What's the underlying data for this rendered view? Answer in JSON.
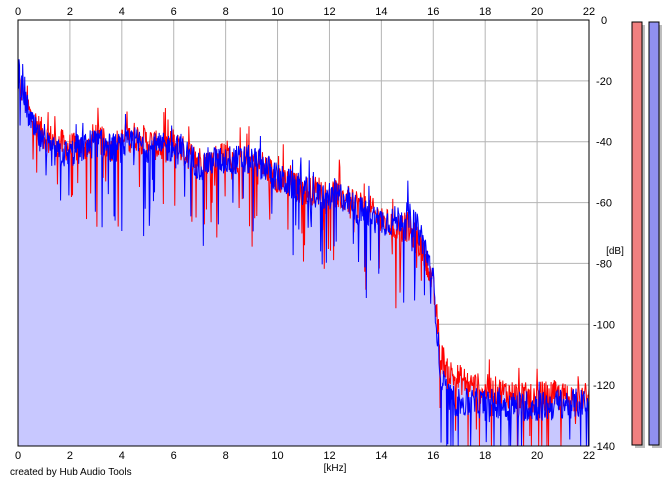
{
  "chart_data": {
    "type": "area",
    "xlabel": "[kHz]",
    "ylabel": "[dB]",
    "xlim": [
      0,
      22
    ],
    "ylim": [
      -140,
      0
    ],
    "x_ticks": [
      "0",
      "2",
      "4",
      "6",
      "8",
      "10",
      "12",
      "14",
      "16",
      "18",
      "20",
      "22"
    ],
    "y_ticks": [
      "0",
      "-20",
      "-40",
      "-60",
      "-80",
      "-100",
      "-120",
      "-140"
    ],
    "grid": true,
    "series": [
      {
        "color": "#ff0000",
        "role": "left channel",
        "x": [
          0,
          0.2,
          0.5,
          1,
          1.5,
          2,
          2.5,
          3,
          3.5,
          4,
          4.5,
          5,
          5.5,
          6,
          6.5,
          7,
          7.5,
          8,
          8.5,
          9,
          9.5,
          10,
          10.5,
          11,
          11.5,
          12,
          12.5,
          13,
          13.5,
          14,
          14.5,
          15,
          15.5,
          15.8,
          16,
          16.3,
          16.6,
          17,
          17.5,
          18,
          18.5,
          19,
          19.5,
          20,
          20.5,
          21,
          21.5,
          22
        ],
        "y": [
          -22,
          -24,
          -32,
          -38,
          -40,
          -42,
          -42,
          -38,
          -42,
          -40,
          -38,
          -40,
          -42,
          -40,
          -44,
          -46,
          -46,
          -44,
          -46,
          -46,
          -48,
          -52,
          -54,
          -56,
          -56,
          -56,
          -58,
          -60,
          -62,
          -66,
          -68,
          -68,
          -74,
          -80,
          -88,
          -110,
          -116,
          -118,
          -120,
          -122,
          -122,
          -123,
          -124,
          -124,
          -123,
          -124,
          -124,
          -124
        ]
      },
      {
        "color": "#0000ff",
        "role": "right channel",
        "x": [
          0,
          0.2,
          0.5,
          1,
          1.5,
          2,
          2.5,
          3,
          3.5,
          4,
          4.5,
          5,
          5.5,
          6,
          6.5,
          7,
          7.5,
          8,
          8.5,
          9,
          9.5,
          10,
          10.5,
          11,
          11.5,
          12,
          12.5,
          13,
          13.5,
          14,
          14.5,
          15,
          15.5,
          15.8,
          16,
          16.3,
          16.6,
          17,
          17.5,
          18,
          18.5,
          19,
          19.5,
          20,
          20.5,
          21,
          21.5,
          22
        ],
        "y": [
          -18,
          -24,
          -34,
          -42,
          -44,
          -44,
          -42,
          -40,
          -42,
          -42,
          -40,
          -42,
          -42,
          -42,
          -44,
          -48,
          -46,
          -46,
          -46,
          -46,
          -48,
          -52,
          -54,
          -56,
          -58,
          -58,
          -58,
          -62,
          -64,
          -66,
          -66,
          -64,
          -70,
          -78,
          -86,
          -118,
          -124,
          -126,
          -126,
          -126,
          -126,
          -127,
          -127,
          -127,
          -127,
          -126,
          -126,
          -126
        ]
      }
    ],
    "level_meters": [
      {
        "color": "#f08080",
        "level": 1.0
      },
      {
        "color": "#9090f0",
        "level": 1.0
      }
    ]
  },
  "fill_color": "#c8c8ff",
  "grid_color": "#b4b4b4",
  "credit": "created by Hub Audio Tools"
}
